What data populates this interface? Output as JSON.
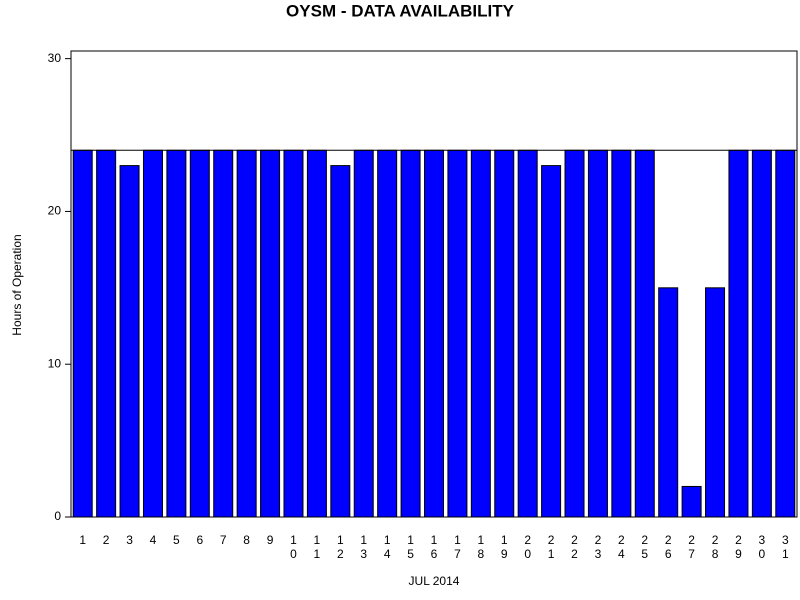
{
  "chart_data": {
    "type": "bar",
    "title": "OYSM - DATA AVAILABILITY",
    "x_label": "JUL 2014",
    "y_label": "Hours of Operation",
    "categories": [
      "1",
      "2",
      "3",
      "4",
      "5",
      "6",
      "7",
      "8",
      "9",
      "10",
      "11",
      "12",
      "13",
      "14",
      "15",
      "16",
      "17",
      "18",
      "19",
      "20",
      "21",
      "22",
      "23",
      "24",
      "25",
      "26",
      "27",
      "28",
      "29",
      "30",
      "31"
    ],
    "values": [
      24,
      24,
      23,
      24,
      24,
      24,
      24,
      24,
      24,
      24,
      24,
      23,
      24,
      24,
      24,
      24,
      24,
      24,
      24,
      24,
      23,
      24,
      24,
      24,
      24,
      15,
      2,
      15,
      24,
      24,
      24
    ],
    "color": "#0000ff",
    "reference_line": 24,
    "ylim": [
      0,
      30.5
    ],
    "yticks": [
      0,
      10,
      20,
      30
    ]
  }
}
